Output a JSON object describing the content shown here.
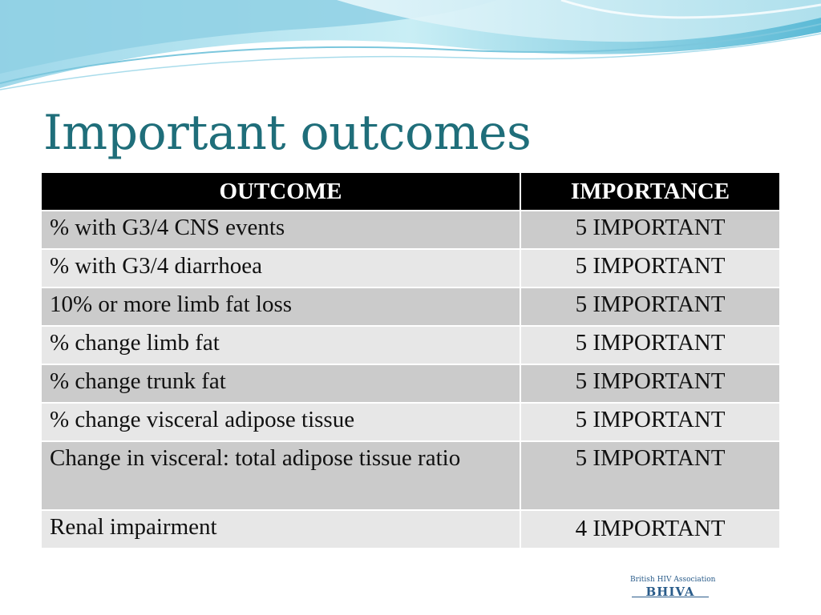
{
  "title": "Important outcomes",
  "table": {
    "headers": [
      "OUTCOME",
      "IMPORTANCE"
    ],
    "rows": [
      {
        "outcome": "% with G3/4 CNS events",
        "importance": "5  IMPORTANT"
      },
      {
        "outcome": "% with G3/4 diarrhoea",
        "importance": "5  IMPORTANT"
      },
      {
        "outcome": "10% or more limb fat loss",
        "importance": "5  IMPORTANT"
      },
      {
        "outcome": "% change limb fat",
        "importance": "5  IMPORTANT"
      },
      {
        "outcome": "% change trunk fat",
        "importance": "5  IMPORTANT"
      },
      {
        "outcome": "% change visceral adipose tissue",
        "importance": "5  IMPORTANT"
      },
      {
        "outcome": "Change in visceral: total adipose tissue ratio",
        "importance": "5  IMPORTANT"
      },
      {
        "outcome": "Renal impairment",
        "importance": "4 IMPORTANT"
      }
    ]
  },
  "logo": {
    "top_text": "British HIV Association",
    "bottom_text": "BHIVA"
  },
  "colors": {
    "title": "#1f6e7a",
    "header_bg": "#000000",
    "row_dark": "#cbcbcb",
    "row_light": "#e7e7e7",
    "wave_light": "#bfe6f0",
    "wave_dark": "#3fa9c9"
  }
}
